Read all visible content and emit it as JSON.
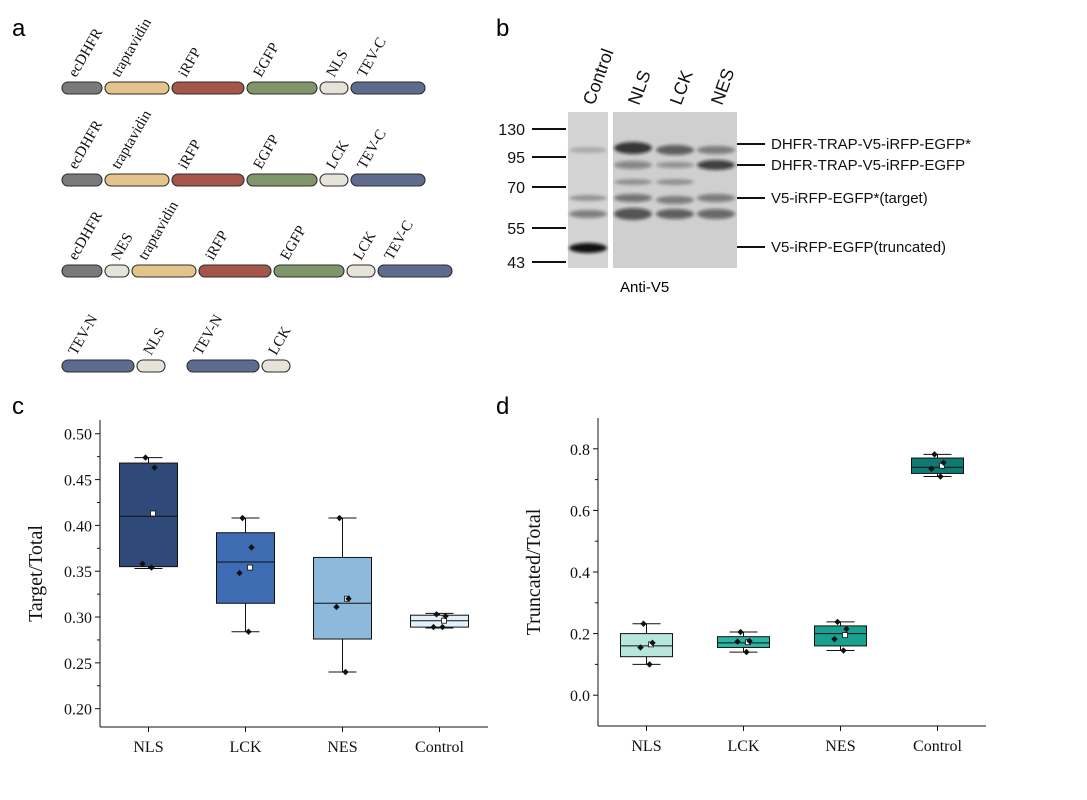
{
  "panels": {
    "a": "a",
    "b": "b",
    "c": "c",
    "d": "d"
  },
  "colors": {
    "ecDHFR": "#7a7a7a",
    "traptavidin": "#e4c48a",
    "iRFP": "#a4564a",
    "EGFP": "#7f956a",
    "tag": "#e6e4d8",
    "TEV": "#5d6b8e",
    "box_c": [
      "#2f4a78",
      "#3d6cb3",
      "#8db9dd",
      "#e2f0f9"
    ],
    "box_d": [
      "#b6e6dc",
      "#2bb5a6",
      "#18a090",
      "#0f7a74"
    ]
  },
  "constructs": [
    {
      "segments": [
        {
          "label": "ecDHFR",
          "color": "ecDHFR"
        },
        {
          "label": "traptavidin",
          "color": "traptavidin"
        },
        {
          "label": "iRFP",
          "color": "iRFP"
        },
        {
          "label": "EGFP",
          "color": "EGFP"
        },
        {
          "label": "NLS",
          "color": "tag"
        },
        {
          "label": "TEV-C",
          "color": "TEV"
        }
      ]
    },
    {
      "segments": [
        {
          "label": "ecDHFR",
          "color": "ecDHFR"
        },
        {
          "label": "traptavidin",
          "color": "traptavidin"
        },
        {
          "label": "iRFP",
          "color": "iRFP"
        },
        {
          "label": "EGFP",
          "color": "EGFP"
        },
        {
          "label": "LCK",
          "color": "tag"
        },
        {
          "label": "TEV-C",
          "color": "TEV"
        }
      ]
    },
    {
      "segments": [
        {
          "label": "ecDHFR",
          "color": "ecDHFR"
        },
        {
          "label": "NES",
          "color": "tag"
        },
        {
          "label": "traptavidin",
          "color": "traptavidin"
        },
        {
          "label": "iRFP",
          "color": "iRFP"
        },
        {
          "label": "EGFP",
          "color": "EGFP"
        },
        {
          "label": "LCK",
          "color": "tag"
        },
        {
          "label": "TEV-C",
          "color": "TEV"
        }
      ]
    },
    {
      "segments": [
        {
          "label": "TEV-N",
          "color": "TEV"
        },
        {
          "label": "NLS",
          "color": "tag"
        }
      ]
    },
    {
      "segments": [
        {
          "label": "TEV-N",
          "color": "TEV"
        },
        {
          "label": "LCK",
          "color": "tag"
        }
      ]
    }
  ],
  "blot": {
    "lanes": [
      "Control",
      "NLS",
      "LCK",
      "NES"
    ],
    "markers": [
      "130",
      "95",
      "70",
      "55",
      "43"
    ],
    "bands": [
      "DHFR-TRAP-V5-iRFP-EGFP*",
      "DHFR-TRAP-V5-iRFP-EGFP",
      "V5-iRFP-EGFP*(target)",
      "V5-iRFP-EGFP(truncated)"
    ],
    "antibody": "Anti-V5"
  },
  "chart_data": [
    {
      "type": "box",
      "panel": "c",
      "ylabel": "Target/Total",
      "xlabel": "",
      "ylim": [
        0.18,
        0.515
      ],
      "yticks": [
        0.2,
        0.25,
        0.3,
        0.35,
        0.4,
        0.45,
        0.5
      ],
      "tick_decimals": 2,
      "categories": [
        "NLS",
        "LCK",
        "NES",
        "Control"
      ],
      "boxes": [
        {
          "q1": 0.355,
          "median": 0.41,
          "q3": 0.468,
          "whislo": 0.353,
          "whishi": 0.474,
          "mean": 0.413,
          "points": [
            0.474,
            0.463,
            0.358,
            0.354
          ]
        },
        {
          "q1": 0.315,
          "median": 0.36,
          "q3": 0.392,
          "whislo": 0.284,
          "whishi": 0.408,
          "mean": 0.354,
          "points": [
            0.408,
            0.376,
            0.348,
            0.284
          ]
        },
        {
          "q1": 0.276,
          "median": 0.315,
          "q3": 0.365,
          "whislo": 0.24,
          "whishi": 0.408,
          "mean": 0.32,
          "points": [
            0.408,
            0.32,
            0.311,
            0.24
          ]
        },
        {
          "q1": 0.289,
          "median": 0.296,
          "q3": 0.302,
          "whislo": 0.288,
          "whishi": 0.304,
          "mean": 0.296,
          "points": [
            0.303,
            0.301,
            0.289,
            0.289
          ]
        }
      ]
    },
    {
      "type": "box",
      "panel": "d",
      "ylabel": "Truncated/Total",
      "xlabel": "",
      "ylim": [
        -0.1,
        0.9
      ],
      "yticks": [
        0.0,
        0.2,
        0.4,
        0.6,
        0.8
      ],
      "tick_decimals": 1,
      "categories": [
        "NLS",
        "LCK",
        "NES",
        "Control"
      ],
      "boxes": [
        {
          "q1": 0.125,
          "median": 0.16,
          "q3": 0.2,
          "whislo": 0.1,
          "whishi": 0.232,
          "mean": 0.165,
          "points": [
            0.232,
            0.17,
            0.155,
            0.1
          ]
        },
        {
          "q1": 0.155,
          "median": 0.17,
          "q3": 0.19,
          "whislo": 0.14,
          "whishi": 0.205,
          "mean": 0.172,
          "points": [
            0.205,
            0.176,
            0.174,
            0.14
          ]
        },
        {
          "q1": 0.16,
          "median": 0.2,
          "q3": 0.225,
          "whislo": 0.145,
          "whishi": 0.238,
          "mean": 0.195,
          "points": [
            0.238,
            0.215,
            0.182,
            0.145
          ]
        },
        {
          "q1": 0.72,
          "median": 0.74,
          "q3": 0.77,
          "whislo": 0.71,
          "whishi": 0.782,
          "mean": 0.745,
          "points": [
            0.782,
            0.755,
            0.735,
            0.71
          ]
        }
      ]
    }
  ]
}
